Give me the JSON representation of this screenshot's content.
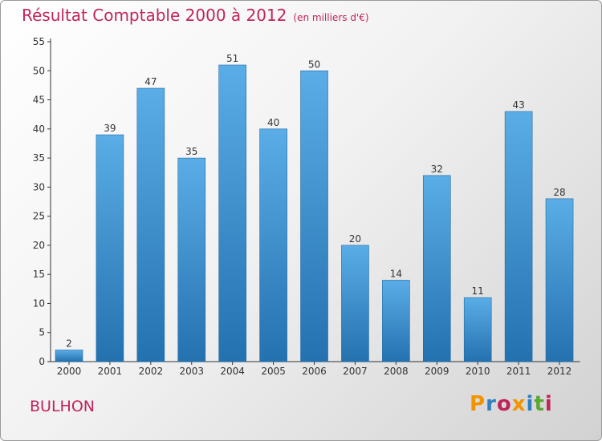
{
  "title": {
    "main": "Résultat Comptable 2000 à 2012",
    "unit": "(en milliers d'€)"
  },
  "commune": "BULHON",
  "logo": {
    "text": "Proxiti",
    "letters": [
      {
        "char": "P",
        "color": "#f29400"
      },
      {
        "char": "r",
        "color": "#2f7fc1"
      },
      {
        "char": "o",
        "color": "#c0245c"
      },
      {
        "char": "x",
        "color": "#f29400"
      },
      {
        "char": "i",
        "color": "#2f7fc1"
      },
      {
        "char": "t",
        "color": "#5aa832"
      },
      {
        "char": "i",
        "color": "#c0245c"
      }
    ]
  },
  "colors": {
    "bar_top": "#5aade6",
    "bar_bottom": "#2471b0",
    "axis": "#333333",
    "title": "#c0245c"
  },
  "chart_data": {
    "type": "bar",
    "title": "Résultat Comptable 2000 à 2012",
    "subtitle": "(en milliers d'€)",
    "xlabel": "",
    "ylabel": "",
    "categories": [
      "2000",
      "2001",
      "2002",
      "2003",
      "2004",
      "2005",
      "2006",
      "2007",
      "2008",
      "2009",
      "2010",
      "2011",
      "2012"
    ],
    "values": [
      2,
      39,
      47,
      35,
      51,
      40,
      50,
      20,
      14,
      32,
      11,
      43,
      28
    ],
    "ylim": [
      0,
      55
    ],
    "yticks": [
      0,
      5,
      10,
      15,
      20,
      25,
      30,
      35,
      40,
      45,
      50,
      55
    ],
    "grid": false,
    "data_labels": true
  }
}
